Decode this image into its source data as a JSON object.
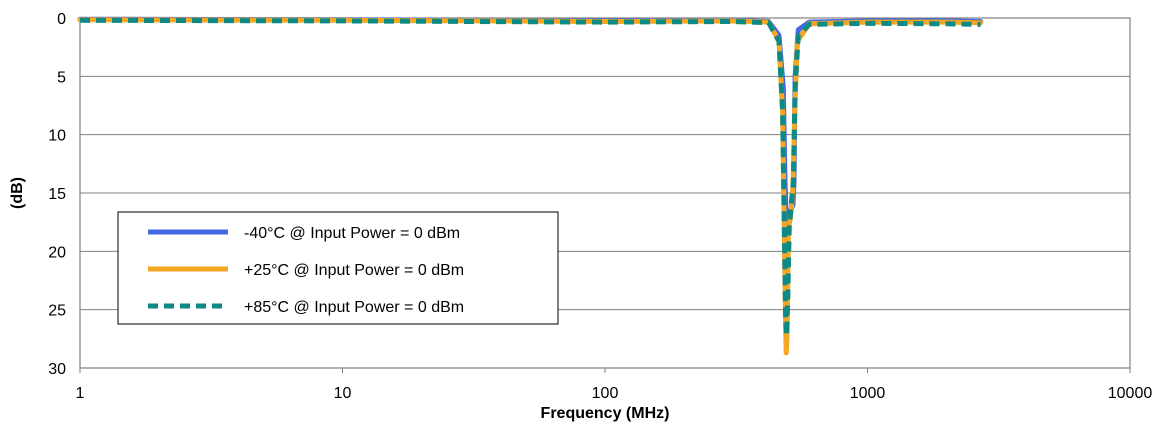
{
  "chart_data": {
    "type": "line",
    "title": "",
    "xlabel": "Frequency (MHz)",
    "ylabel": "(dB)",
    "x_scale": "log",
    "xlim": [
      1,
      10000
    ],
    "ylim": [
      0,
      30
    ],
    "y_inverted": true,
    "x_ticks": [
      "1",
      "10",
      "100",
      "1000",
      "10000"
    ],
    "y_ticks": [
      "0",
      "5",
      "10",
      "15",
      "20",
      "25",
      "30"
    ],
    "grid": "horizontal",
    "legend_position": "lower-left",
    "series": [
      {
        "name": "-40°C @  Input Power = 0 dBm",
        "color": "#4169e1",
        "style": "solid",
        "points": [
          [
            1,
            0.1
          ],
          [
            10,
            0.15
          ],
          [
            100,
            0.25
          ],
          [
            300,
            0.2
          ],
          [
            420,
            0.3
          ],
          [
            460,
            1.5
          ],
          [
            478,
            6
          ],
          [
            485,
            14
          ],
          [
            490,
            17
          ],
          [
            495,
            18
          ],
          [
            500,
            17.5
          ],
          [
            510,
            16.5
          ],
          [
            520,
            16
          ],
          [
            525,
            14
          ],
          [
            530,
            5
          ],
          [
            545,
            1
          ],
          [
            600,
            0.35
          ],
          [
            1000,
            0.25
          ],
          [
            2000,
            0.25
          ],
          [
            2700,
            0.3
          ]
        ]
      },
      {
        "name": "+25°C @  Input Power = 0 dBm",
        "color": "#f5a623",
        "style": "solid",
        "points": [
          [
            1,
            0.15
          ],
          [
            10,
            0.2
          ],
          [
            100,
            0.3
          ],
          [
            300,
            0.25
          ],
          [
            420,
            0.35
          ],
          [
            460,
            2
          ],
          [
            475,
            8
          ],
          [
            482,
            18
          ],
          [
            487,
            26
          ],
          [
            490,
            28.7
          ],
          [
            494,
            27
          ],
          [
            500,
            18
          ],
          [
            510,
            17
          ],
          [
            520,
            14.5
          ],
          [
            528,
            8
          ],
          [
            540,
            2
          ],
          [
            600,
            0.5
          ],
          [
            1000,
            0.35
          ],
          [
            2000,
            0.35
          ],
          [
            2700,
            0.4
          ]
        ]
      },
      {
        "name": "+85°C @  Input Power = 0 dBm",
        "color": "#0e8a85",
        "style": "dashed",
        "points": [
          [
            1,
            0.2
          ],
          [
            10,
            0.25
          ],
          [
            100,
            0.35
          ],
          [
            300,
            0.3
          ],
          [
            420,
            0.4
          ],
          [
            460,
            2
          ],
          [
            475,
            8
          ],
          [
            482,
            18
          ],
          [
            488,
            26
          ],
          [
            492,
            27.2
          ],
          [
            497,
            24
          ],
          [
            503,
            18
          ],
          [
            512,
            16
          ],
          [
            522,
            14
          ],
          [
            530,
            6
          ],
          [
            545,
            1.5
          ],
          [
            600,
            0.55
          ],
          [
            1000,
            0.45
          ],
          [
            2000,
            0.5
          ],
          [
            2700,
            0.55
          ]
        ]
      }
    ]
  }
}
